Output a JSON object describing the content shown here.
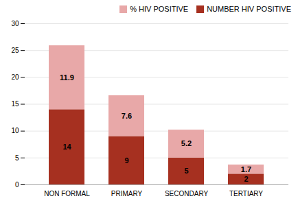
{
  "chart_data": {
    "type": "bar",
    "stacked": true,
    "categories": [
      "NON FORMAL",
      "PRIMARY",
      "SECONDARY",
      "TERTIARY"
    ],
    "series": [
      {
        "name": "NUMBER HIV POSITIVE",
        "color": "#A63020",
        "values": [
          14,
          9,
          5,
          2
        ]
      },
      {
        "name": "% HIV POSITIVE",
        "color": "#E8A8A8",
        "values": [
          11.9,
          7.6,
          5.2,
          1.7
        ]
      }
    ],
    "ylim": [
      0,
      30
    ],
    "yticks": [
      0,
      5,
      10,
      15,
      20,
      25,
      30
    ],
    "grid": true,
    "legend": "upper right",
    "data_labels": true
  }
}
